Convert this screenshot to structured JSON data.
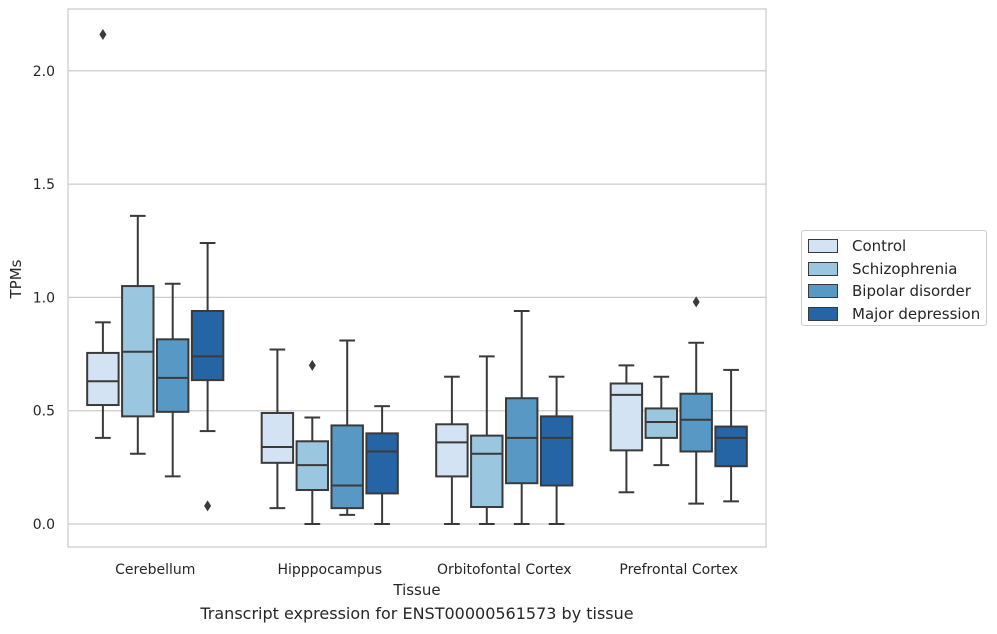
{
  "caption": "Transcript expression for ENST00000561573 by tissue",
  "chart_data": {
    "type": "box",
    "title": "",
    "xlabel": "Tissue",
    "ylabel": "TPMs",
    "ylim": [
      -0.1,
      2.28
    ],
    "yticks": [
      0.0,
      0.5,
      1.0,
      1.5,
      2.0
    ],
    "ytick_labels": [
      "0.0",
      "0.5",
      "1.0",
      "1.5",
      "2.0"
    ],
    "grid": "horizontal",
    "legend_position": "right",
    "categories": [
      "Cerebellum",
      "Hipppocampus",
      "Orbitofontal Cortex",
      "Prefrontal Cortex"
    ],
    "series": [
      {
        "name": "Control",
        "color": "#d4e3f3",
        "boxes": [
          {
            "whislo": 0.38,
            "q1": 0.525,
            "med": 0.63,
            "q3": 0.755,
            "whishi": 0.89,
            "fliers": [
              2.16
            ]
          },
          {
            "whislo": 0.07,
            "q1": 0.27,
            "med": 0.34,
            "q3": 0.49,
            "whishi": 0.77,
            "fliers": []
          },
          {
            "whislo": 0.0,
            "q1": 0.21,
            "med": 0.36,
            "q3": 0.44,
            "whishi": 0.65,
            "fliers": []
          },
          {
            "whislo": 0.14,
            "q1": 0.325,
            "med": 0.57,
            "q3": 0.62,
            "whishi": 0.7,
            "fliers": []
          }
        ]
      },
      {
        "name": "Schizophrenia",
        "color": "#9ac7df",
        "boxes": [
          {
            "whislo": 0.31,
            "q1": 0.475,
            "med": 0.76,
            "q3": 1.05,
            "whishi": 1.36,
            "fliers": []
          },
          {
            "whislo": 0.0,
            "q1": 0.15,
            "med": 0.26,
            "q3": 0.365,
            "whishi": 0.47,
            "fliers": [
              0.7
            ]
          },
          {
            "whislo": 0.0,
            "q1": 0.075,
            "med": 0.31,
            "q3": 0.39,
            "whishi": 0.74,
            "fliers": []
          },
          {
            "whislo": 0.26,
            "q1": 0.38,
            "med": 0.45,
            "q3": 0.51,
            "whishi": 0.65,
            "fliers": []
          }
        ]
      },
      {
        "name": "Bipolar disorder",
        "color": "#5898c4",
        "boxes": [
          {
            "whislo": 0.21,
            "q1": 0.495,
            "med": 0.645,
            "q3": 0.815,
            "whishi": 1.06,
            "fliers": []
          },
          {
            "whislo": 0.04,
            "q1": 0.07,
            "med": 0.17,
            "q3": 0.435,
            "whishi": 0.81,
            "fliers": []
          },
          {
            "whislo": 0.0,
            "q1": 0.18,
            "med": 0.38,
            "q3": 0.555,
            "whishi": 0.94,
            "fliers": []
          },
          {
            "whislo": 0.09,
            "q1": 0.32,
            "med": 0.46,
            "q3": 0.575,
            "whishi": 0.8,
            "fliers": [
              0.98
            ]
          }
        ]
      },
      {
        "name": "Major depression",
        "color": "#2565a6",
        "boxes": [
          {
            "whislo": 0.41,
            "q1": 0.635,
            "med": 0.74,
            "q3": 0.94,
            "whishi": 1.24,
            "fliers": [
              0.08
            ]
          },
          {
            "whislo": 0.0,
            "q1": 0.135,
            "med": 0.32,
            "q3": 0.4,
            "whishi": 0.52,
            "fliers": []
          },
          {
            "whislo": 0.0,
            "q1": 0.17,
            "med": 0.38,
            "q3": 0.475,
            "whishi": 0.65,
            "fliers": []
          },
          {
            "whislo": 0.1,
            "q1": 0.255,
            "med": 0.38,
            "q3": 0.43,
            "whishi": 0.68,
            "fliers": []
          }
        ]
      }
    ]
  }
}
